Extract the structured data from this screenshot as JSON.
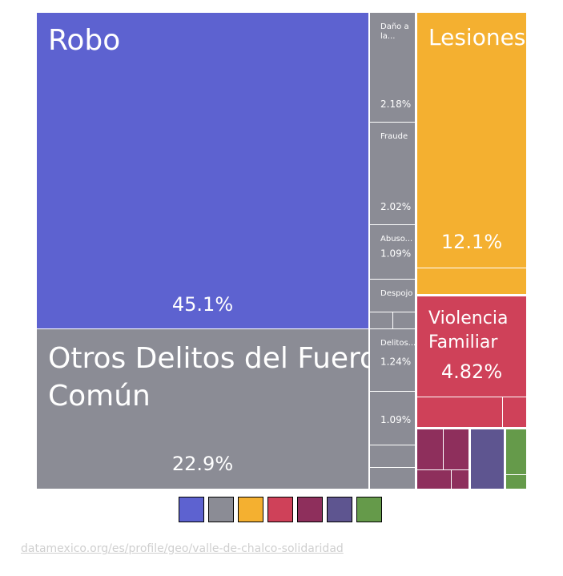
{
  "chart_data": {
    "type": "treemap",
    "categories": [
      {
        "name": "Robo",
        "color": "#5d62d0",
        "items": [
          {
            "label": "Robo",
            "share": 45.1,
            "value_label": "45.1%"
          }
        ]
      },
      {
        "name": "Otros Delitos del Fuero Común",
        "color": "#8b8c95",
        "items": [
          {
            "label": "Otros Delitos del Fuero Común",
            "share": 22.9,
            "value_label": "22.9%"
          },
          {
            "label": "Daño a la...",
            "share": 2.18,
            "value_label": "2.18%"
          },
          {
            "label": "Fraude",
            "share": 2.02,
            "value_label": "2.02%"
          },
          {
            "label": "Abuso...",
            "share": 1.09,
            "value_label": "1.09%"
          },
          {
            "label": "Despojo",
            "share": 1.0,
            "value_label": ""
          },
          {
            "label": "",
            "share": 0.5,
            "value_label": ""
          },
          {
            "label": "",
            "share": 0.4,
            "value_label": ""
          },
          {
            "label": "Delitos...",
            "share": 1.24,
            "value_label": "1.24%"
          },
          {
            "label": "",
            "share": 1.09,
            "value_label": "1.09%"
          },
          {
            "label": "",
            "share": 0.5,
            "value_label": ""
          },
          {
            "label": "",
            "share": 0.45,
            "value_label": ""
          }
        ]
      },
      {
        "name": "Lesiones",
        "color": "#f4b030",
        "items": [
          {
            "label": "Lesiones",
            "share": 12.1,
            "value_label": "12.1%"
          },
          {
            "label": "",
            "share": 0.9,
            "value_label": ""
          }
        ]
      },
      {
        "name": "Violencia Familiar",
        "color": "#cf4159",
        "items": [
          {
            "label": "Violencia Familiar",
            "share": 4.82,
            "value_label": "4.82%"
          },
          {
            "label": "",
            "share": 1.0,
            "value_label": ""
          },
          {
            "label": "",
            "share": 0.35,
            "value_label": ""
          }
        ]
      },
      {
        "name": "",
        "color": "#8e2f5c",
        "items": [
          {
            "label": "",
            "share": 0.5,
            "value_label": ""
          },
          {
            "label": "",
            "share": 0.45,
            "value_label": ""
          },
          {
            "label": "",
            "share": 0.35,
            "value_label": ""
          },
          {
            "label": "",
            "share": 0.15,
            "value_label": ""
          }
        ]
      },
      {
        "name": "",
        "color": "#5e5590",
        "items": [
          {
            "label": "",
            "share": 0.8,
            "value_label": ""
          }
        ]
      },
      {
        "name": "",
        "color": "#659a4a",
        "items": [
          {
            "label": "",
            "share": 0.35,
            "value_label": ""
          },
          {
            "label": "",
            "share": 0.12,
            "value_label": ""
          }
        ]
      }
    ],
    "legend_colors": [
      "#5d62d0",
      "#8b8c95",
      "#f4b030",
      "#cf4159",
      "#8e2f5c",
      "#5e5590",
      "#659a4a"
    ]
  },
  "source": "datamexico.org/es/profile/geo/valle-de-chalco-solidaridad"
}
